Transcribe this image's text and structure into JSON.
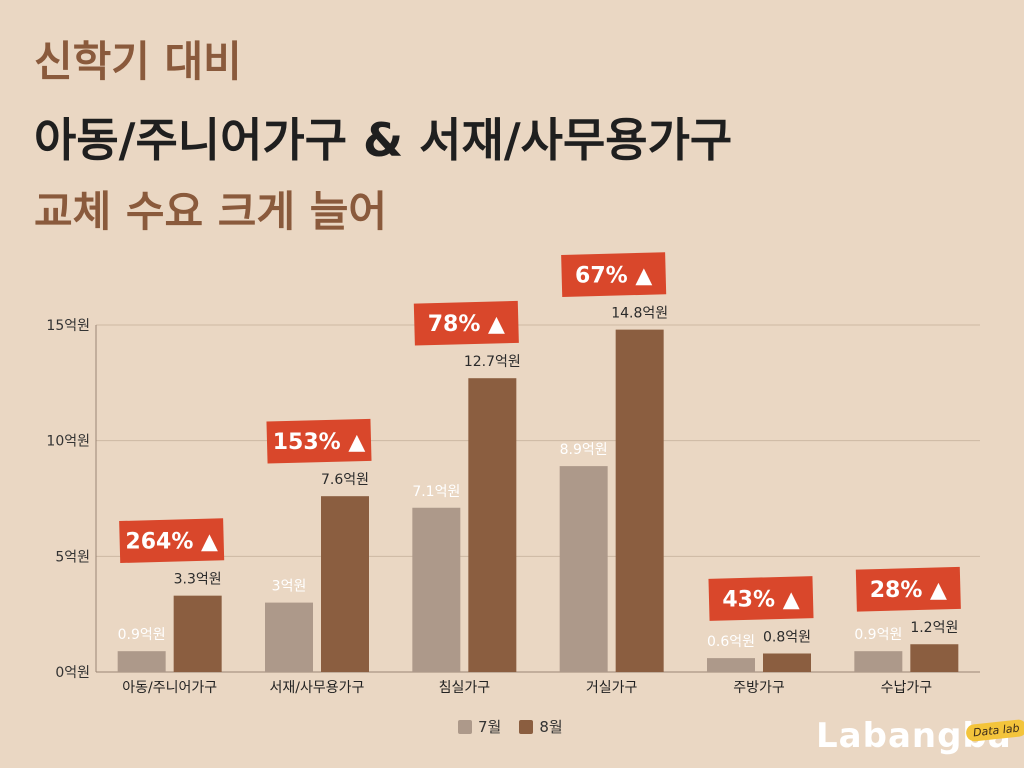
{
  "title": {
    "line1": "신학기 대비",
    "line2": "아동/주니어가구 & 서재/사무용가구",
    "line3": "교체 수요 크게 늘어"
  },
  "logo": {
    "text": "Labangba",
    "badge": "Data lab"
  },
  "colors": {
    "background": "#ead7c3",
    "july": "#ad998a",
    "august": "#8b5e40",
    "badge": "#d9472b",
    "title_accent": "#8a5a3c"
  },
  "chart_data": {
    "type": "bar",
    "categories": [
      "아동/주니어가구",
      "서재/사무용가구",
      "침실가구",
      "거실가구",
      "주방가구",
      "수납가구"
    ],
    "series": [
      {
        "name": "7월",
        "values": [
          0.9,
          3,
          7.1,
          8.9,
          0.6,
          0.9
        ],
        "labels": [
          "0.9억원",
          "3억원",
          "7.1억원",
          "8.9억원",
          "0.6억원",
          "0.9억원"
        ]
      },
      {
        "name": "8월",
        "values": [
          3.3,
          7.6,
          12.7,
          14.8,
          0.8,
          1.2
        ],
        "labels": [
          "3.3억원",
          "7.6억원",
          "12.7억원",
          "14.8억원",
          "0.8억원",
          "1.2억원"
        ]
      }
    ],
    "growth_labels": [
      "264% ▲",
      "153% ▲",
      "78% ▲",
      "67% ▲",
      "43% ▲",
      "28% ▲"
    ],
    "yticks": [
      0,
      5,
      10,
      15
    ],
    "ytick_labels": [
      "0억원",
      "5억원",
      "10억원",
      "15억원"
    ],
    "ylim": [
      0,
      15
    ],
    "grid": true,
    "legend_position": "bottom-center"
  }
}
